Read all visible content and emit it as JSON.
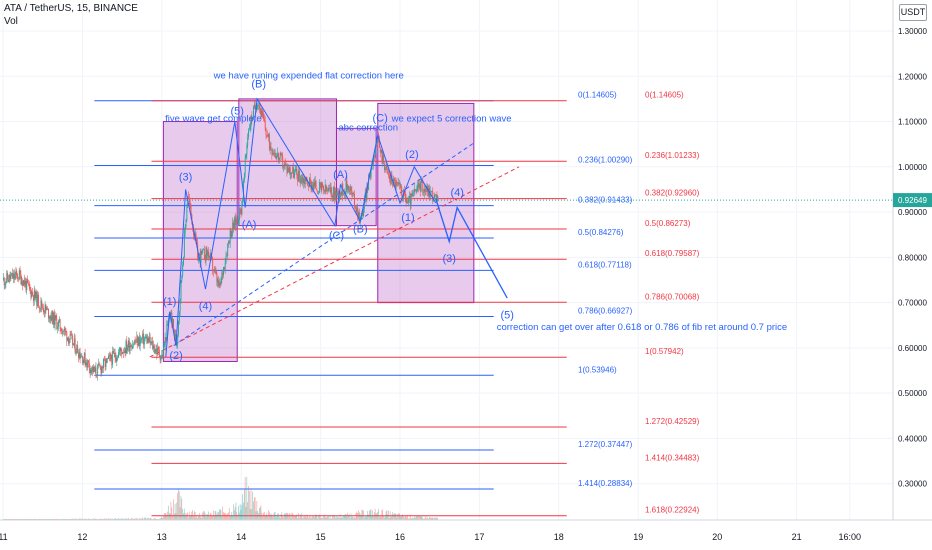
{
  "header": {
    "symbol_line": "ATA / TetherUS, 15, BINANCE",
    "indicator": "Vol",
    "currency_button": "USDT"
  },
  "chart_data": {
    "type": "candlestick",
    "ylim": [
      0.2,
      1.32
    ],
    "y_ticks": [
      "1.30000",
      "1.20000",
      "1.10000",
      "1.00000",
      "0.90000",
      "0.80000",
      "0.70000",
      "0.60000",
      "0.50000",
      "0.40000",
      "0.30000"
    ],
    "y_tick_values": [
      1.3,
      1.2,
      1.1,
      1.0,
      0.9,
      0.8,
      0.7,
      0.6,
      0.5,
      0.4,
      0.3
    ],
    "x_ticks": [
      "11",
      "12",
      "13",
      "14",
      "15",
      "16",
      "17",
      "18",
      "19",
      "20",
      "21",
      "16:00"
    ],
    "x_tick_values": [
      11,
      12,
      13,
      14,
      15,
      16,
      17,
      18,
      19,
      20,
      21,
      21.67
    ],
    "xlim": [
      11,
      22.5
    ],
    "current_price": "0.92649",
    "current_price_value": 0.92649,
    "price_path": [
      [
        11.0,
        0.75
      ],
      [
        11.2,
        0.76
      ],
      [
        11.45,
        0.7
      ],
      [
        11.75,
        0.64
      ],
      [
        12.0,
        0.58
      ],
      [
        12.15,
        0.545
      ],
      [
        12.35,
        0.575
      ],
      [
        12.6,
        0.61
      ],
      [
        12.8,
        0.62
      ],
      [
        13.0,
        0.58
      ],
      [
        13.1,
        0.68
      ],
      [
        13.18,
        0.605
      ],
      [
        13.32,
        0.94
      ],
      [
        13.45,
        0.8
      ],
      [
        13.58,
        0.81
      ],
      [
        13.72,
        0.73
      ],
      [
        13.85,
        0.85
      ],
      [
        14.0,
        0.91
      ],
      [
        14.08,
        1.08
      ],
      [
        14.2,
        1.15
      ],
      [
        14.35,
        1.05
      ],
      [
        14.55,
        1.0
      ],
      [
        14.8,
        0.97
      ],
      [
        15.0,
        0.95
      ],
      [
        15.2,
        0.94
      ],
      [
        15.35,
        0.96
      ],
      [
        15.5,
        0.88
      ],
      [
        15.7,
        1.06
      ],
      [
        15.85,
        0.98
      ],
      [
        16.0,
        0.95
      ],
      [
        16.1,
        0.92
      ],
      [
        16.25,
        0.96
      ],
      [
        16.4,
        0.94
      ],
      [
        16.48,
        0.92
      ]
    ],
    "volume_path": [
      [
        11.0,
        0.01
      ],
      [
        11.5,
        0.015
      ],
      [
        12.0,
        0.02
      ],
      [
        12.5,
        0.025
      ],
      [
        13.0,
        0.04
      ],
      [
        13.1,
        0.25
      ],
      [
        13.2,
        0.4
      ],
      [
        13.3,
        0.15
      ],
      [
        13.6,
        0.1
      ],
      [
        14.0,
        0.25
      ],
      [
        14.05,
        0.55
      ],
      [
        14.3,
        0.12
      ],
      [
        14.8,
        0.08
      ],
      [
        15.2,
        0.06
      ],
      [
        15.5,
        0.12
      ],
      [
        15.7,
        0.15
      ],
      [
        16.0,
        0.08
      ],
      [
        16.5,
        0.03
      ]
    ],
    "fib_blue": [
      {
        "label": "0(1.14605)",
        "value": 1.14605
      },
      {
        "label": "0.236(1.00290)",
        "value": 1.0029
      },
      {
        "label": "0.382(0.91433)",
        "value": 0.91433
      },
      {
        "label": "0.5(0.84276)",
        "value": 0.84276
      },
      {
        "label": "0.618(0.77118)",
        "value": 0.77118
      },
      {
        "label": "0.786(0.66927)",
        "value": 0.66927
      },
      {
        "label": "1(0.53946)",
        "value": 0.53946
      },
      {
        "label": "1.272(0.37447)",
        "value": 0.37447
      },
      {
        "label": "1.414(0.28834)",
        "value": 0.28834
      }
    ],
    "fib_red": [
      {
        "label": "0(1.14605)",
        "value": 1.14605
      },
      {
        "label": "0.236(1.01233)",
        "value": 1.01233
      },
      {
        "label": "0.382(0.92960)",
        "value": 0.9296
      },
      {
        "label": "0.5(0.86273)",
        "value": 0.86273
      },
      {
        "label": "0.618(0.79587)",
        "value": 0.79587
      },
      {
        "label": "0.786(0.70068)",
        "value": 0.70068
      },
      {
        "label": "1(0.57942)",
        "value": 0.57942
      },
      {
        "label": "1.272(0.42529)",
        "value": 0.42529
      },
      {
        "label": "1.414(0.34483)",
        "value": 0.34483
      },
      {
        "label": "1.618(0.22924)",
        "value": 0.22924
      }
    ],
    "wave_labels": [
      {
        "text": "(1)",
        "x": 13.1,
        "y": 0.695
      },
      {
        "text": "(2)",
        "x": 13.18,
        "y": 0.575
      },
      {
        "text": "(3)",
        "x": 13.3,
        "y": 0.97
      },
      {
        "text": "(4)",
        "x": 13.55,
        "y": 0.685
      },
      {
        "text": "(5)",
        "x": 13.95,
        "y": 1.115
      },
      {
        "text": "(A)",
        "x": 14.1,
        "y": 0.865
      },
      {
        "text": "(B)",
        "x": 14.22,
        "y": 1.175
      },
      {
        "text": "(C)",
        "x": 15.2,
        "y": 0.84
      },
      {
        "text": "(A)",
        "x": 15.25,
        "y": 0.975
      },
      {
        "text": "(B)",
        "x": 15.5,
        "y": 0.855
      },
      {
        "text": "(C)",
        "x": 15.75,
        "y": 1.1
      },
      {
        "text": "(2)",
        "x": 16.15,
        "y": 1.02
      },
      {
        "text": "(1)",
        "x": 16.1,
        "y": 0.88
      },
      {
        "text": "(4)",
        "x": 16.72,
        "y": 0.935
      },
      {
        "text": "(3)",
        "x": 16.62,
        "y": 0.79
      },
      {
        "text": "(5)",
        "x": 17.35,
        "y": 0.665
      }
    ],
    "annotations": [
      {
        "text": "we have runing expended flat correction here",
        "x": 14.85,
        "y": 1.195
      },
      {
        "text": "five wave get complete",
        "x": 13.65,
        "y": 1.1
      },
      {
        "text": "abc correction",
        "x": 15.6,
        "y": 1.08
      },
      {
        "text": "we expect 5 correction wave",
        "x": 16.65,
        "y": 1.1
      },
      {
        "text": "correction can get over after 0.618 or 0.786 of fib ret around 0.7 price",
        "x": 19.05,
        "y": 0.64
      }
    ]
  }
}
